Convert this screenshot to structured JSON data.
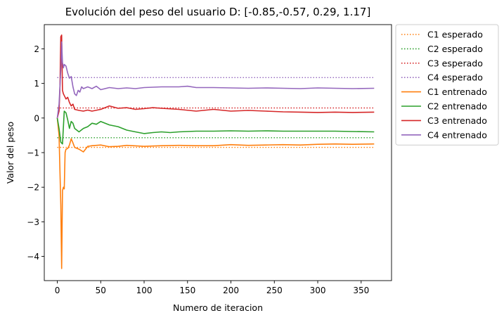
{
  "chart_data": {
    "type": "line",
    "title": "Evolución del peso del usuario D: [-0.85,-0.57, 0.29, 1.17]",
    "xlabel": "Numero de iteracion",
    "ylabel": "Valor del peso",
    "xlim": [
      -15,
      385
    ],
    "ylim": [
      -4.7,
      2.7
    ],
    "xticks": [
      0,
      50,
      100,
      150,
      200,
      250,
      300,
      350
    ],
    "yticks": [
      -4,
      -3,
      -2,
      -1,
      0,
      1,
      2
    ],
    "ytick_labels": [
      "−4",
      "−3",
      "−2",
      "−1",
      "0",
      "1",
      "2"
    ],
    "grid": false,
    "legend_position": "outside-right",
    "series": [
      {
        "name": "C1 esperado",
        "color": "#ff7f0e",
        "style": "dotted",
        "x": [
          0,
          365
        ],
        "y": [
          -0.85,
          -0.85
        ]
      },
      {
        "name": "C2 esperado",
        "color": "#2ca02c",
        "style": "dotted",
        "x": [
          0,
          365
        ],
        "y": [
          -0.57,
          -0.57
        ]
      },
      {
        "name": "C3 esperado",
        "color": "#d62728",
        "style": "dotted",
        "x": [
          0,
          365
        ],
        "y": [
          0.29,
          0.29
        ]
      },
      {
        "name": "C4 esperado",
        "color": "#9467bd",
        "style": "dotted",
        "x": [
          0,
          365
        ],
        "y": [
          1.17,
          1.17
        ]
      },
      {
        "name": "C1 entrenado",
        "color": "#ff7f0e",
        "style": "solid",
        "x": [
          0,
          2,
          4,
          5,
          6,
          7,
          8,
          9,
          10,
          12,
          14,
          16,
          18,
          20,
          25,
          30,
          35,
          40,
          50,
          60,
          70,
          80,
          100,
          120,
          140,
          160,
          180,
          200,
          220,
          240,
          260,
          280,
          300,
          320,
          340,
          365
        ],
        "y": [
          0.0,
          -0.5,
          -2.5,
          -4.35,
          -2.1,
          -2.0,
          -2.05,
          -1.0,
          -0.9,
          -0.88,
          -0.78,
          -0.6,
          -0.72,
          -0.85,
          -0.9,
          -0.98,
          -0.82,
          -0.8,
          -0.78,
          -0.83,
          -0.82,
          -0.79,
          -0.82,
          -0.8,
          -0.79,
          -0.8,
          -0.8,
          -0.77,
          -0.79,
          -0.78,
          -0.77,
          -0.78,
          -0.76,
          -0.75,
          -0.76,
          -0.75
        ]
      },
      {
        "name": "C2 entrenado",
        "color": "#2ca02c",
        "style": "solid",
        "x": [
          0,
          2,
          4,
          6,
          8,
          10,
          12,
          14,
          16,
          18,
          20,
          25,
          30,
          35,
          40,
          45,
          50,
          60,
          70,
          80,
          90,
          100,
          110,
          120,
          130,
          140,
          160,
          180,
          200,
          220,
          240,
          260,
          280,
          300,
          320,
          340,
          365
        ],
        "y": [
          0.0,
          -0.3,
          -0.7,
          -0.75,
          0.2,
          0.15,
          -0.05,
          -0.3,
          -0.1,
          -0.15,
          -0.3,
          -0.4,
          -0.3,
          -0.25,
          -0.15,
          -0.18,
          -0.1,
          -0.2,
          -0.25,
          -0.35,
          -0.4,
          -0.45,
          -0.42,
          -0.4,
          -0.42,
          -0.4,
          -0.38,
          -0.38,
          -0.37,
          -0.38,
          -0.37,
          -0.38,
          -0.38,
          -0.38,
          -0.38,
          -0.39,
          -0.4
        ]
      },
      {
        "name": "C3 entrenado",
        "color": "#d62728",
        "style": "solid",
        "x": [
          0,
          2,
          3,
          4,
          5,
          6,
          7,
          8,
          10,
          12,
          14,
          16,
          18,
          20,
          25,
          30,
          35,
          40,
          50,
          55,
          60,
          70,
          80,
          90,
          100,
          110,
          120,
          140,
          160,
          180,
          200,
          220,
          240,
          260,
          280,
          300,
          320,
          340,
          365
        ],
        "y": [
          0.0,
          0.2,
          0.8,
          2.35,
          2.4,
          0.8,
          0.7,
          0.65,
          0.55,
          0.6,
          0.45,
          0.35,
          0.4,
          0.25,
          0.22,
          0.2,
          0.23,
          0.2,
          0.25,
          0.3,
          0.35,
          0.28,
          0.3,
          0.25,
          0.27,
          0.3,
          0.28,
          0.25,
          0.2,
          0.25,
          0.2,
          0.22,
          0.2,
          0.18,
          0.17,
          0.16,
          0.17,
          0.16,
          0.17
        ]
      },
      {
        "name": "C4 entrenado",
        "color": "#9467bd",
        "style": "solid",
        "x": [
          0,
          2,
          4,
          5,
          6,
          7,
          8,
          10,
          12,
          14,
          16,
          18,
          20,
          22,
          24,
          26,
          28,
          30,
          35,
          40,
          45,
          50,
          60,
          70,
          80,
          90,
          100,
          120,
          140,
          150,
          160,
          180,
          200,
          220,
          240,
          260,
          280,
          300,
          320,
          340,
          365
        ],
        "y": [
          0.0,
          0.4,
          1.4,
          2.2,
          1.6,
          1.45,
          1.55,
          1.5,
          1.3,
          1.15,
          1.2,
          0.9,
          0.7,
          0.65,
          0.8,
          0.75,
          0.9,
          0.85,
          0.9,
          0.85,
          0.92,
          0.82,
          0.88,
          0.85,
          0.87,
          0.85,
          0.88,
          0.9,
          0.9,
          0.92,
          0.88,
          0.88,
          0.87,
          0.86,
          0.87,
          0.86,
          0.85,
          0.87,
          0.86,
          0.85,
          0.86
        ]
      }
    ]
  }
}
